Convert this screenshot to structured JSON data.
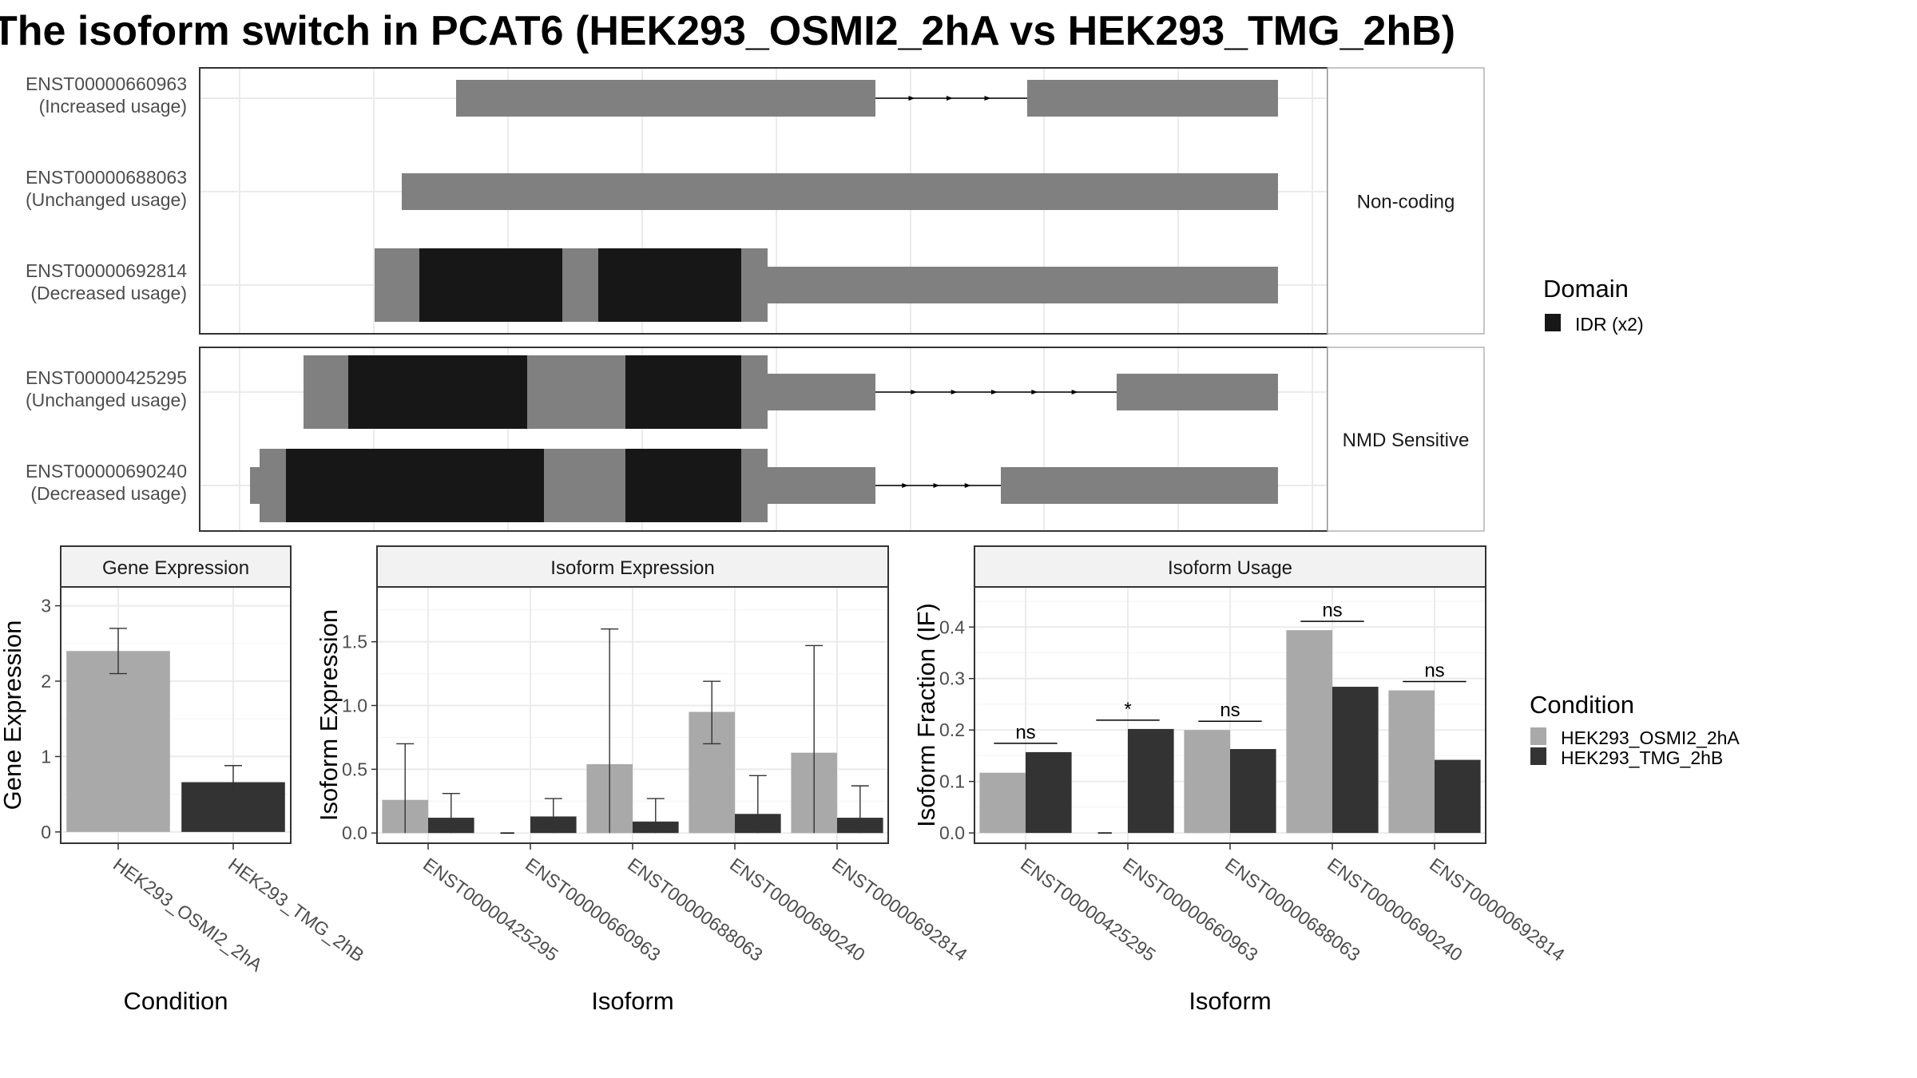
{
  "title": "The isoform switch in PCAT6 (HEK293_OSMI2_2hA vs HEK293_TMG_2hB)",
  "colors": {
    "exon": "#808080",
    "domain": "#171717",
    "cond_a": "#a9a9a9",
    "cond_b": "#333333",
    "strip": "#f2f2f2",
    "panel_border": "#333333",
    "grid": "#ebebeb"
  },
  "transcripts": {
    "groups": [
      {
        "label": "Non-coding",
        "rows": [
          {
            "id": "ENST00000660963",
            "usage": "(Increased usage)"
          },
          {
            "id": "ENST00000688063",
            "usage": "(Unchanged usage)"
          },
          {
            "id": "ENST00000692814",
            "usage": "(Decreased usage)"
          }
        ]
      },
      {
        "label": "NMD Sensitive",
        "rows": [
          {
            "id": "ENST00000425295",
            "usage": "(Unchanged usage)"
          },
          {
            "id": "ENST00000690240",
            "usage": "(Decreased usage)"
          }
        ]
      }
    ],
    "legend": {
      "title": "Domain",
      "items": [
        "IDR (x2)"
      ]
    }
  },
  "chart_data": [
    {
      "type": "bar",
      "title": "Gene Expression",
      "xlabel": "Condition",
      "ylabel": "Gene Expression",
      "categories": [
        "HEK293_OSMI2_2hA",
        "HEK293_TMG_2hB"
      ],
      "values": [
        2.4,
        0.66
      ],
      "error_low": [
        2.1,
        0.45
      ],
      "error_high": [
        2.7,
        0.88
      ],
      "yticks": [
        0,
        1,
        2,
        3
      ],
      "ylim": [
        -0.15,
        3.25
      ]
    },
    {
      "type": "bar",
      "title": "Isoform Expression",
      "xlabel": "Isoform",
      "ylabel": "Isoform Expression",
      "categories": [
        "ENST00000425295",
        "ENST00000660963",
        "ENST00000688063",
        "ENST00000690240",
        "ENST00000692814"
      ],
      "series": [
        {
          "name": "HEK293_OSMI2_2hA",
          "values": [
            0.26,
            0.0,
            0.54,
            0.95,
            0.63
          ],
          "error_low": [
            0.0,
            0.0,
            0.0,
            0.7,
            0.0
          ],
          "error_high": [
            0.7,
            0.0,
            1.6,
            1.19,
            1.47
          ]
        },
        {
          "name": "HEK293_TMG_2hB",
          "values": [
            0.12,
            0.13,
            0.09,
            0.15,
            0.12
          ],
          "error_low": [
            0.0,
            0.0,
            0.0,
            0.0,
            0.0
          ],
          "error_high": [
            0.31,
            0.27,
            0.27,
            0.45,
            0.37
          ]
        }
      ],
      "yticks": [
        0.0,
        0.5,
        1.0,
        1.5
      ],
      "ytick_labels": [
        "0.0",
        "0.5",
        "1.0",
        "1.5"
      ],
      "ylim": [
        -0.08,
        1.93
      ]
    },
    {
      "type": "bar",
      "title": "Isoform Usage",
      "xlabel": "Isoform",
      "ylabel": "Isoform Fraction (IF)",
      "categories": [
        "ENST00000425295",
        "ENST00000660963",
        "ENST00000688063",
        "ENST00000690240",
        "ENST00000692814"
      ],
      "series": [
        {
          "name": "HEK293_OSMI2_2hA",
          "values": [
            0.117,
            0.0,
            0.2,
            0.394,
            0.277
          ]
        },
        {
          "name": "HEK293_TMG_2hB",
          "values": [
            0.157,
            0.202,
            0.163,
            0.284,
            0.142
          ]
        }
      ],
      "significance": [
        "ns",
        "*",
        "ns",
        "ns",
        "ns"
      ],
      "yticks": [
        0.0,
        0.1,
        0.2,
        0.3,
        0.4
      ],
      "ytick_labels": [
        "0.0",
        "0.1",
        "0.2",
        "0.3",
        "0.4"
      ],
      "ylim": [
        -0.02,
        0.478
      ]
    }
  ],
  "condition_legend": {
    "title": "Condition",
    "items": [
      "HEK293_OSMI2_2hA",
      "HEK293_TMG_2hB"
    ]
  }
}
